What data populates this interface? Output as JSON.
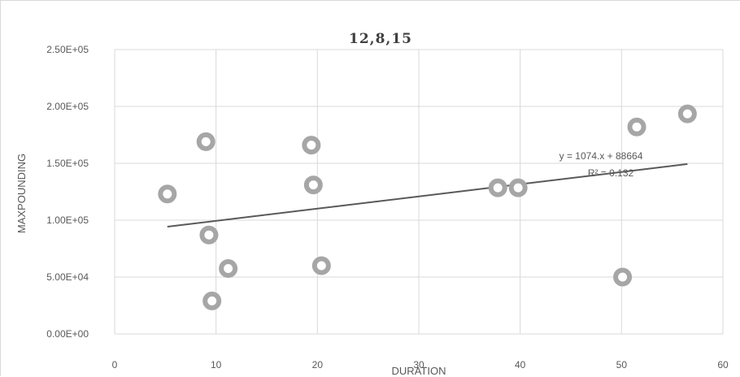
{
  "chart_data": {
    "type": "scatter",
    "title": "12,8,15",
    "xlabel": "DURATION",
    "ylabel": "MAXPOUNDING",
    "xlim": [
      0,
      60
    ],
    "ylim": [
      0,
      250000
    ],
    "x_ticks": [
      "0",
      "10",
      "20",
      "30",
      "40",
      "50",
      "60"
    ],
    "y_ticks": [
      "0.00E+00",
      "5.00E+04",
      "1.00E+05",
      "1.50E+05",
      "2.00E+05",
      "2.50E+05"
    ],
    "grid": true,
    "series": [
      {
        "points": [
          {
            "x": 5.2,
            "y": 123000
          },
          {
            "x": 9.0,
            "y": 169000
          },
          {
            "x": 9.3,
            "y": 87000
          },
          {
            "x": 9.6,
            "y": 29000
          },
          {
            "x": 11.2,
            "y": 57500
          },
          {
            "x": 19.4,
            "y": 166000
          },
          {
            "x": 19.6,
            "y": 131000
          },
          {
            "x": 20.4,
            "y": 60000
          },
          {
            "x": 37.8,
            "y": 128500
          },
          {
            "x": 39.8,
            "y": 128500
          },
          {
            "x": 50.1,
            "y": 50000
          },
          {
            "x": 51.5,
            "y": 182000
          },
          {
            "x": 56.5,
            "y": 193500
          }
        ]
      }
    ],
    "trendline": {
      "type": "linear",
      "slope": 1074,
      "intercept": 88664,
      "x_start": 5.2,
      "x_end": 56.5,
      "equation_label": "y = 1074.x + 88664",
      "r2_label": "R² = 0.132"
    },
    "colors": {
      "marker_ring": "#a6a6a6",
      "marker_center": "#ffffff",
      "trendline": "#595959",
      "gridline": "#d9d9d9"
    }
  }
}
